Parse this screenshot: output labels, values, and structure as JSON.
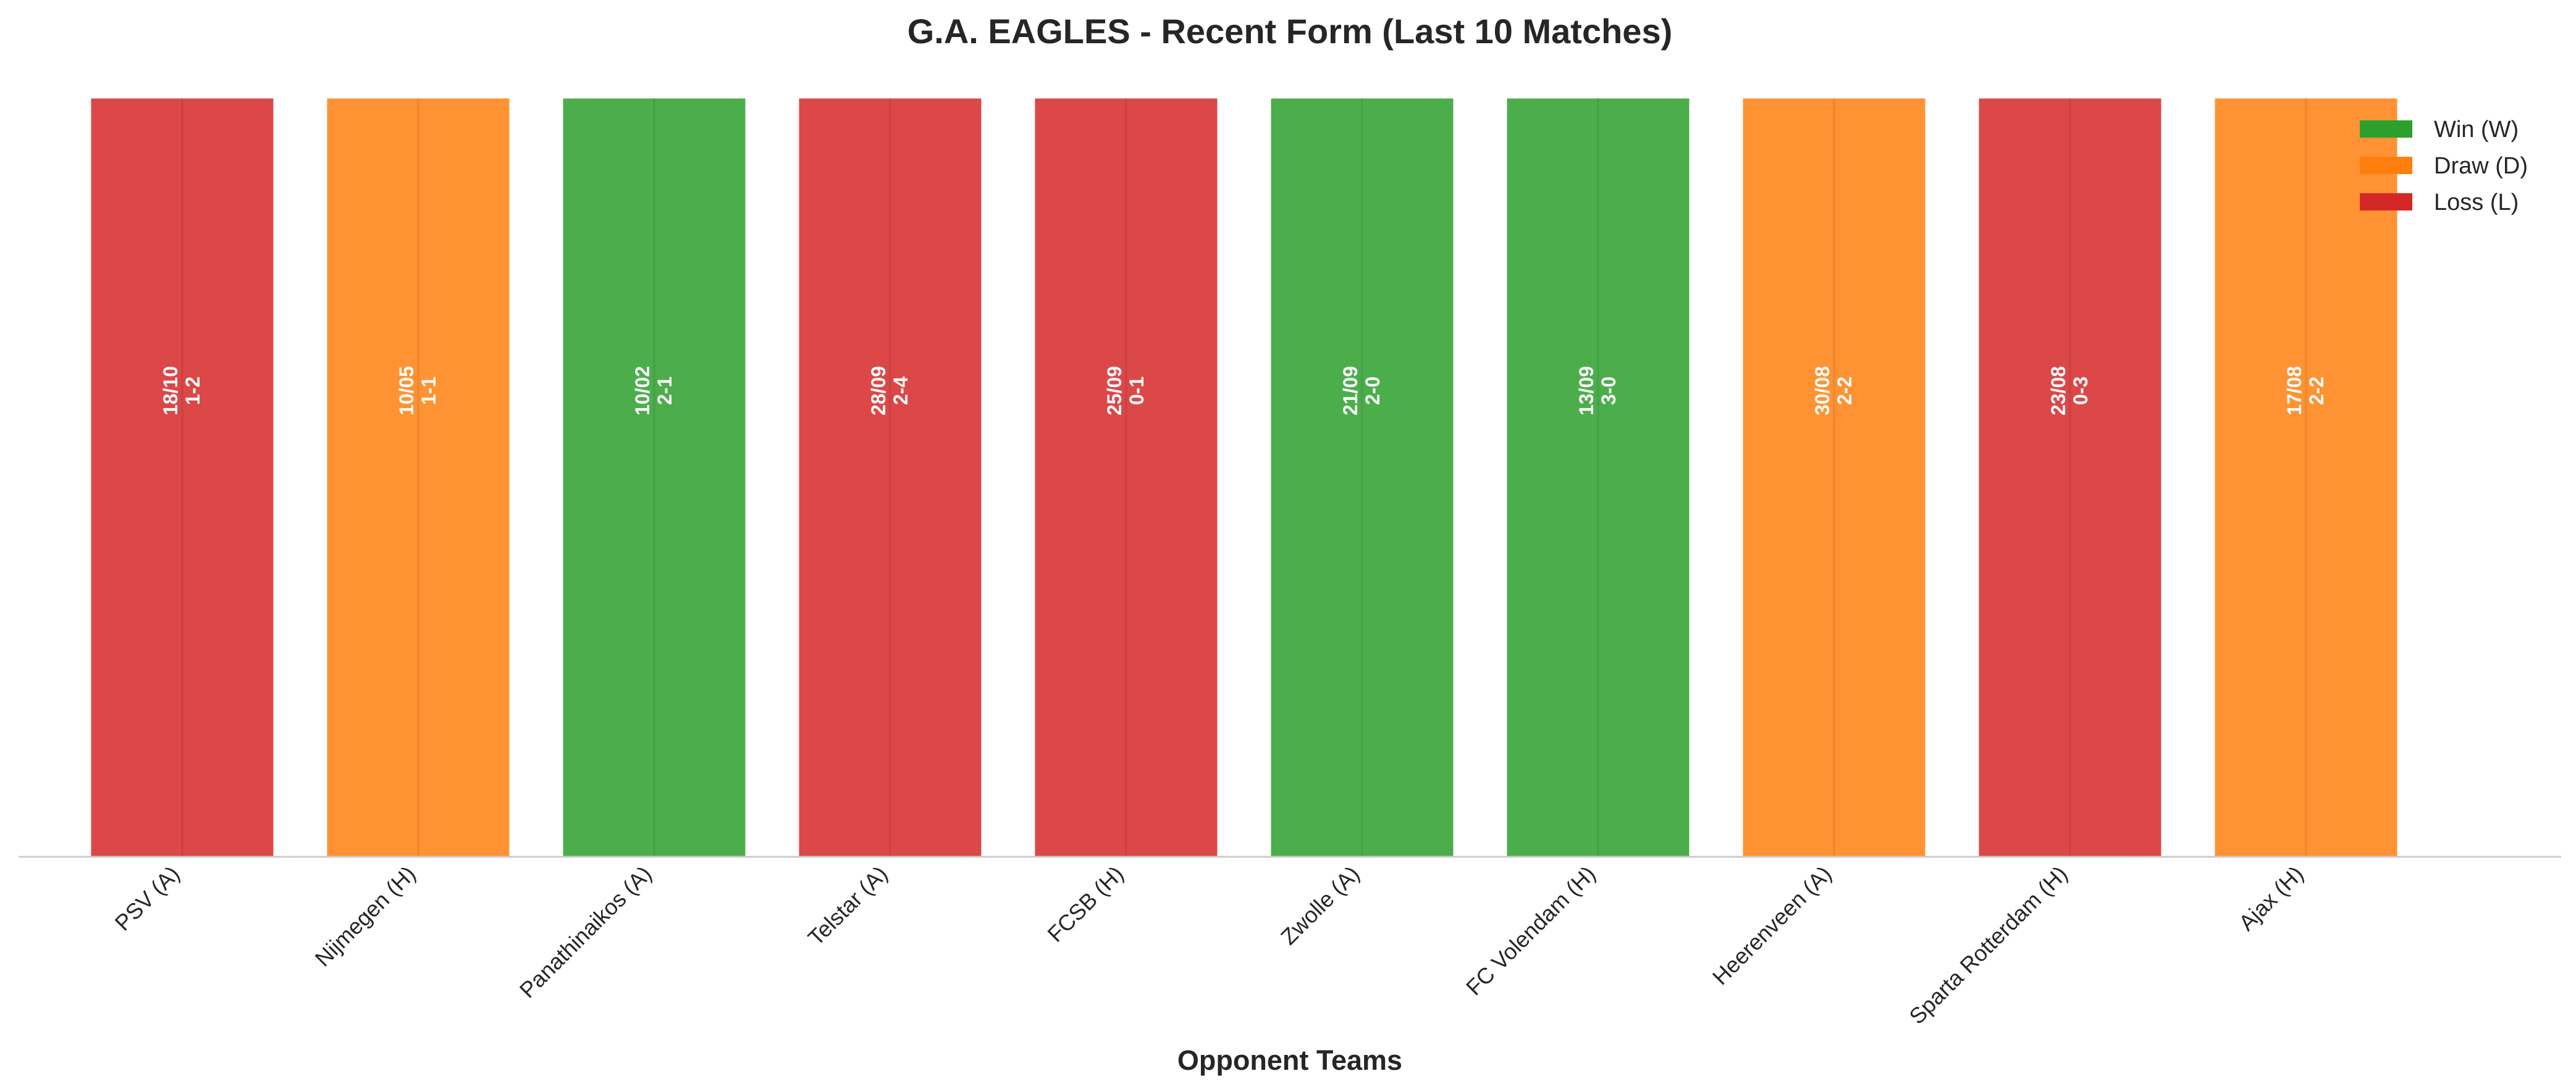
{
  "chart_data": {
    "type": "bar",
    "title": "G.A. EAGLES - Recent Form (Last 10 Matches)",
    "xlabel": "Opponent Teams",
    "ylabel": "",
    "categories": [
      "PSV (A)",
      "Nijmegen (H)",
      "Panathinaikos (A)",
      "Telstar (A)",
      "FCSB (H)",
      "Zwolle (A)",
      "FC Volendam (H)",
      "Heerenveen (A)",
      "Sparta Rotterdam (H)",
      "Ajax (H)"
    ],
    "values": [
      1,
      1,
      1,
      1,
      1,
      1,
      1,
      1,
      1,
      1
    ],
    "results": [
      "L",
      "D",
      "W",
      "L",
      "L",
      "W",
      "W",
      "D",
      "L",
      "D"
    ],
    "dates": [
      "18/10",
      "10/05",
      "10/02",
      "28/09",
      "25/09",
      "21/09",
      "13/09",
      "30/08",
      "23/08",
      "17/08"
    ],
    "scores": [
      "1-2",
      "1-1",
      "2-1",
      "2-4",
      "0-1",
      "2-0",
      "3-0",
      "2-2",
      "0-3",
      "2-2"
    ],
    "ylim": [
      0,
      1.05
    ],
    "grid": false,
    "legend_position": "top-right",
    "legend": [
      {
        "key": "W",
        "label": "Win (W)",
        "color": "#2ca02c"
      },
      {
        "key": "D",
        "label": "Draw (D)",
        "color": "#ff7f0e"
      },
      {
        "key": "L",
        "label": "Loss (L)",
        "color": "#d62728"
      }
    ]
  }
}
